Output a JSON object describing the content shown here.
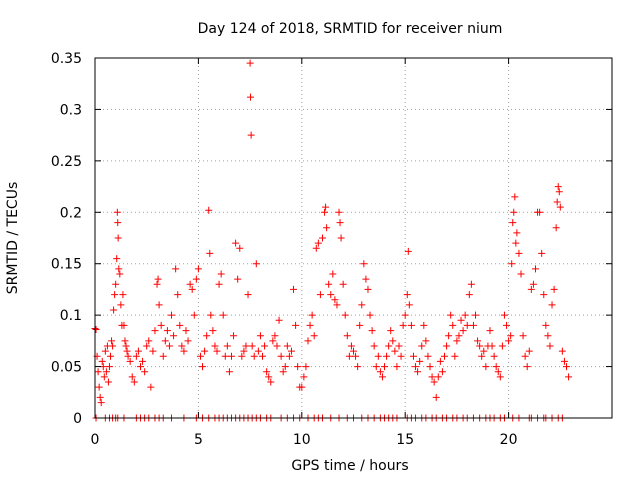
{
  "chart_data": {
    "type": "scatter",
    "title": "Day 124 of 2018, SRMTID for receiver nium",
    "xlabel": "GPS time / hours",
    "ylabel": "SRMTID / TECUs",
    "xlim": [
      0,
      25
    ],
    "ylim": [
      0,
      0.35
    ],
    "x_ticks": [
      0,
      5,
      10,
      15,
      20
    ],
    "x_tick_labels": [
      "0",
      "5",
      "10",
      "15",
      "20"
    ],
    "y_ticks": [
      0,
      0.05,
      0.1,
      0.15,
      0.2,
      0.25,
      0.3,
      0.35
    ],
    "y_tick_labels": [
      "0",
      "0.05",
      "0.1",
      "0.15",
      "0.2",
      "0.25",
      "0.3",
      "0.35"
    ],
    "grid": true,
    "marker": "plus",
    "color": "#ff0000",
    "series": [
      {
        "name": "SRMTID",
        "points": [
          [
            0.0,
            0.087
          ],
          [
            0.05,
            0.086
          ],
          [
            0.1,
            0.06
          ],
          [
            0.15,
            0.045
          ],
          [
            0.2,
            0.03
          ],
          [
            0.25,
            0.02
          ],
          [
            0.3,
            0.015
          ],
          [
            0.35,
            0.055
          ],
          [
            0.4,
            0.05
          ],
          [
            0.45,
            0.04
          ],
          [
            0.5,
            0.065
          ],
          [
            0.55,
            0.045
          ],
          [
            0.6,
            0.07
          ],
          [
            0.65,
            0.035
          ],
          [
            0.7,
            0.05
          ],
          [
            0.75,
            0.06
          ],
          [
            0.8,
            0.075
          ],
          [
            0.85,
            0.07
          ],
          [
            0.9,
            0.105
          ],
          [
            0.95,
            0.12
          ],
          [
            1.0,
            0.13
          ],
          [
            1.05,
            0.155
          ],
          [
            1.08,
            0.2
          ],
          [
            1.1,
            0.19
          ],
          [
            1.12,
            0.175
          ],
          [
            1.15,
            0.145
          ],
          [
            1.2,
            0.14
          ],
          [
            1.25,
            0.11
          ],
          [
            1.3,
            0.09
          ],
          [
            1.35,
            0.12
          ],
          [
            1.4,
            0.09
          ],
          [
            1.45,
            0.075
          ],
          [
            1.5,
            0.07
          ],
          [
            1.55,
            0.065
          ],
          [
            1.6,
            0.06
          ],
          [
            1.7,
            0.055
          ],
          [
            1.8,
            0.04
          ],
          [
            1.9,
            0.035
          ],
          [
            2.0,
            0.06
          ],
          [
            2.1,
            0.065
          ],
          [
            2.2,
            0.05
          ],
          [
            2.3,
            0.055
          ],
          [
            2.4,
            0.045
          ],
          [
            2.5,
            0.07
          ],
          [
            2.6,
            0.075
          ],
          [
            2.7,
            0.03
          ],
          [
            2.8,
            0.065
          ],
          [
            2.9,
            0.085
          ],
          [
            3.0,
            0.13
          ],
          [
            3.05,
            0.135
          ],
          [
            3.1,
            0.11
          ],
          [
            3.2,
            0.09
          ],
          [
            3.3,
            0.06
          ],
          [
            3.4,
            0.075
          ],
          [
            3.5,
            0.085
          ],
          [
            3.6,
            0.07
          ],
          [
            3.7,
            0.1
          ],
          [
            3.8,
            0.08
          ],
          [
            3.9,
            0.145
          ],
          [
            4.0,
            0.12
          ],
          [
            4.1,
            0.09
          ],
          [
            4.2,
            0.07
          ],
          [
            4.3,
            0.065
          ],
          [
            4.4,
            0.085
          ],
          [
            4.5,
            0.075
          ],
          [
            4.6,
            0.13
          ],
          [
            4.7,
            0.125
          ],
          [
            4.8,
            0.1
          ],
          [
            4.9,
            0.135
          ],
          [
            5.0,
            0.145
          ],
          [
            5.1,
            0.06
          ],
          [
            5.2,
            0.05
          ],
          [
            5.3,
            0.065
          ],
          [
            5.4,
            0.08
          ],
          [
            5.5,
            0.202
          ],
          [
            5.55,
            0.16
          ],
          [
            5.6,
            0.1
          ],
          [
            5.7,
            0.085
          ],
          [
            5.8,
            0.07
          ],
          [
            5.9,
            0.065
          ],
          [
            6.0,
            0.13
          ],
          [
            6.1,
            0.14
          ],
          [
            6.2,
            0.1
          ],
          [
            6.3,
            0.06
          ],
          [
            6.4,
            0.07
          ],
          [
            6.5,
            0.045
          ],
          [
            6.6,
            0.06
          ],
          [
            6.7,
            0.08
          ],
          [
            6.8,
            0.17
          ],
          [
            6.9,
            0.135
          ],
          [
            7.0,
            0.165
          ],
          [
            7.1,
            0.06
          ],
          [
            7.2,
            0.065
          ],
          [
            7.3,
            0.07
          ],
          [
            7.4,
            0.12
          ],
          [
            7.5,
            0.345
          ],
          [
            7.52,
            0.312
          ],
          [
            7.55,
            0.275
          ],
          [
            7.6,
            0.07
          ],
          [
            7.7,
            0.06
          ],
          [
            7.8,
            0.15
          ],
          [
            7.9,
            0.065
          ],
          [
            8.0,
            0.08
          ],
          [
            8.1,
            0.06
          ],
          [
            8.2,
            0.07
          ],
          [
            8.3,
            0.045
          ],
          [
            8.4,
            0.04
          ],
          [
            8.5,
            0.035
          ],
          [
            8.6,
            0.075
          ],
          [
            8.7,
            0.08
          ],
          [
            8.8,
            0.07
          ],
          [
            8.9,
            0.095
          ],
          [
            9.0,
            0.06
          ],
          [
            9.1,
            0.045
          ],
          [
            9.2,
            0.05
          ],
          [
            9.3,
            0.07
          ],
          [
            9.4,
            0.06
          ],
          [
            9.5,
            0.065
          ],
          [
            9.6,
            0.125
          ],
          [
            9.7,
            0.09
          ],
          [
            9.8,
            0.05
          ],
          [
            9.9,
            0.03
          ],
          [
            10.0,
            0.03
          ],
          [
            10.1,
            0.04
          ],
          [
            10.2,
            0.05
          ],
          [
            10.3,
            0.075
          ],
          [
            10.4,
            0.09
          ],
          [
            10.5,
            0.1
          ],
          [
            10.6,
            0.08
          ],
          [
            10.7,
            0.165
          ],
          [
            10.8,
            0.17
          ],
          [
            10.9,
            0.12
          ],
          [
            11.0,
            0.175
          ],
          [
            11.1,
            0.2
          ],
          [
            11.15,
            0.205
          ],
          [
            11.2,
            0.185
          ],
          [
            11.3,
            0.13
          ],
          [
            11.4,
            0.12
          ],
          [
            11.5,
            0.14
          ],
          [
            11.6,
            0.115
          ],
          [
            11.7,
            0.11
          ],
          [
            11.8,
            0.2
          ],
          [
            11.85,
            0.19
          ],
          [
            11.9,
            0.175
          ],
          [
            12.0,
            0.13
          ],
          [
            12.1,
            0.1
          ],
          [
            12.2,
            0.08
          ],
          [
            12.3,
            0.06
          ],
          [
            12.4,
            0.07
          ],
          [
            12.5,
            0.065
          ],
          [
            12.6,
            0.06
          ],
          [
            12.7,
            0.05
          ],
          [
            12.8,
            0.09
          ],
          [
            12.9,
            0.11
          ],
          [
            13.0,
            0.15
          ],
          [
            13.1,
            0.135
          ],
          [
            13.2,
            0.125
          ],
          [
            13.3,
            0.1
          ],
          [
            13.4,
            0.085
          ],
          [
            13.5,
            0.07
          ],
          [
            13.6,
            0.05
          ],
          [
            13.7,
            0.06
          ],
          [
            13.8,
            0.045
          ],
          [
            13.9,
            0.04
          ],
          [
            14.0,
            0.05
          ],
          [
            14.1,
            0.06
          ],
          [
            14.2,
            0.07
          ],
          [
            14.3,
            0.085
          ],
          [
            14.4,
            0.075
          ],
          [
            14.5,
            0.065
          ],
          [
            14.6,
            0.05
          ],
          [
            14.7,
            0.07
          ],
          [
            14.8,
            0.06
          ],
          [
            14.9,
            0.09
          ],
          [
            15.0,
            0.1
          ],
          [
            15.1,
            0.12
          ],
          [
            15.15,
            0.162
          ],
          [
            15.2,
            0.11
          ],
          [
            15.3,
            0.09
          ],
          [
            15.4,
            0.06
          ],
          [
            15.5,
            0.05
          ],
          [
            15.6,
            0.045
          ],
          [
            15.7,
            0.055
          ],
          [
            15.8,
            0.07
          ],
          [
            15.9,
            0.09
          ],
          [
            16.0,
            0.075
          ],
          [
            16.1,
            0.06
          ],
          [
            16.2,
            0.05
          ],
          [
            16.3,
            0.04
          ],
          [
            16.4,
            0.035
          ],
          [
            16.5,
            0.02
          ],
          [
            16.6,
            0.04
          ],
          [
            16.7,
            0.055
          ],
          [
            16.8,
            0.045
          ],
          [
            16.9,
            0.06
          ],
          [
            17.0,
            0.07
          ],
          [
            17.1,
            0.08
          ],
          [
            17.2,
            0.1
          ],
          [
            17.3,
            0.09
          ],
          [
            17.4,
            0.06
          ],
          [
            17.5,
            0.075
          ],
          [
            17.6,
            0.08
          ],
          [
            17.7,
            0.095
          ],
          [
            17.8,
            0.085
          ],
          [
            17.9,
            0.1
          ],
          [
            18.0,
            0.09
          ],
          [
            18.1,
            0.12
          ],
          [
            18.2,
            0.13
          ],
          [
            18.3,
            0.09
          ],
          [
            18.4,
            0.1
          ],
          [
            18.5,
            0.075
          ],
          [
            18.6,
            0.07
          ],
          [
            18.7,
            0.06
          ],
          [
            18.8,
            0.065
          ],
          [
            18.9,
            0.05
          ],
          [
            19.0,
            0.07
          ],
          [
            19.1,
            0.085
          ],
          [
            19.2,
            0.07
          ],
          [
            19.3,
            0.06
          ],
          [
            19.4,
            0.05
          ],
          [
            19.5,
            0.045
          ],
          [
            19.6,
            0.04
          ],
          [
            19.7,
            0.07
          ],
          [
            19.8,
            0.1
          ],
          [
            19.9,
            0.09
          ],
          [
            20.0,
            0.075
          ],
          [
            20.1,
            0.08
          ],
          [
            20.15,
            0.15
          ],
          [
            20.2,
            0.19
          ],
          [
            20.25,
            0.2
          ],
          [
            20.3,
            0.215
          ],
          [
            20.35,
            0.17
          ],
          [
            20.4,
            0.18
          ],
          [
            20.5,
            0.16
          ],
          [
            20.6,
            0.14
          ],
          [
            20.7,
            0.08
          ],
          [
            20.8,
            0.06
          ],
          [
            20.9,
            0.05
          ],
          [
            21.0,
            0.065
          ],
          [
            21.1,
            0.125
          ],
          [
            21.2,
            0.13
          ],
          [
            21.3,
            0.145
          ],
          [
            21.4,
            0.2
          ],
          [
            21.5,
            0.2
          ],
          [
            21.6,
            0.16
          ],
          [
            21.7,
            0.12
          ],
          [
            21.8,
            0.09
          ],
          [
            21.9,
            0.08
          ],
          [
            22.0,
            0.07
          ],
          [
            22.1,
            0.11
          ],
          [
            22.2,
            0.125
          ],
          [
            22.3,
            0.185
          ],
          [
            22.35,
            0.21
          ],
          [
            22.4,
            0.225
          ],
          [
            22.45,
            0.22
          ],
          [
            22.5,
            0.205
          ],
          [
            22.6,
            0.065
          ],
          [
            22.7,
            0.055
          ],
          [
            22.8,
            0.05
          ],
          [
            22.9,
            0.04
          ]
        ]
      }
    ],
    "zero_values_x": [
      0.05,
      0.5,
      0.7,
      0.85,
      1.0,
      1.1,
      1.4,
      2.0,
      2.2,
      2.4,
      2.6,
      2.9,
      3.1,
      3.3,
      3.7,
      4.3,
      4.9,
      5.2,
      5.5,
      5.8,
      6.0,
      6.2,
      6.4,
      6.6,
      6.8,
      7.0,
      7.2,
      7.4,
      7.6,
      7.8,
      8.0,
      8.3,
      8.5,
      9.0,
      9.3,
      9.6,
      9.9,
      10.3,
      10.6,
      10.8,
      11.0,
      11.4,
      11.8,
      12.2,
      12.5,
      12.9,
      13.2,
      13.5,
      13.8,
      14.0,
      14.2,
      14.4,
      14.6,
      15.1,
      15.3,
      15.5,
      15.8,
      16.0,
      16.3,
      16.5,
      16.8,
      17.0,
      17.3,
      17.5,
      17.8,
      18.0,
      18.3,
      18.6,
      18.9,
      19.1,
      19.3,
      19.6,
      19.8,
      20.2,
      20.5,
      21.0,
      21.1,
      21.4,
      21.7,
      21.8,
      22.1,
      22.4,
      22.6
    ]
  }
}
